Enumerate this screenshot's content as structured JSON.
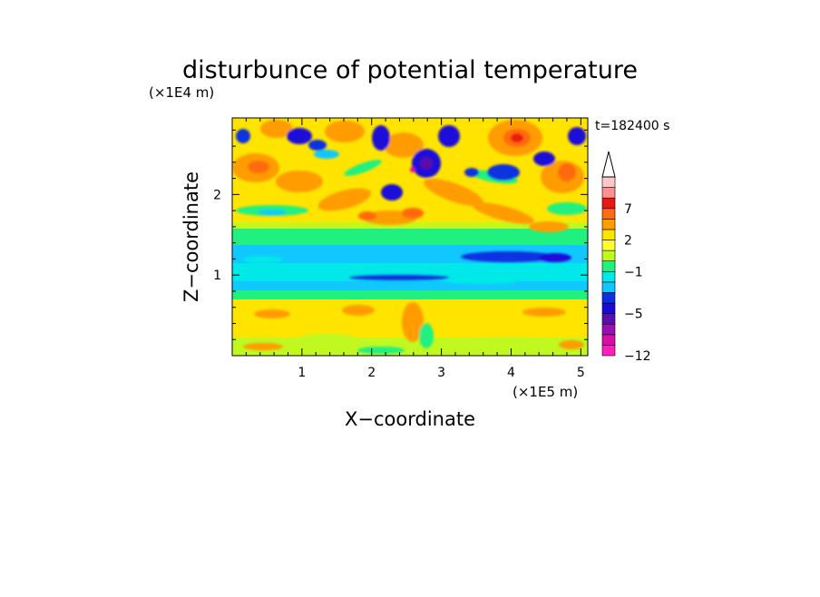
{
  "chart_data": {
    "type": "heatmap",
    "title": "disturbunce of potential temperature",
    "xlabel": "X−coordinate",
    "ylabel": "Z−coordinate",
    "x_unit": "(×1E5 m)",
    "y_unit": "(×1E4 m)",
    "time_label": "t=182400 s",
    "xlim": [
      0,
      5.1
    ],
    "ylim": [
      0,
      2.95
    ],
    "x_ticks": [
      1,
      2,
      3,
      4,
      5
    ],
    "y_ticks": [
      1,
      2
    ],
    "x_tick_labels": [
      "1",
      "2",
      "3",
      "4",
      "5"
    ],
    "y_tick_labels": [
      "1",
      "2"
    ],
    "grid": false,
    "colorbar": {
      "levels": [
        -12,
        -10,
        -8,
        -6,
        -5,
        -4,
        -3,
        -2,
        -1,
        0,
        1,
        2,
        3,
        5,
        7,
        9,
        11
      ],
      "labeled_levels": [
        "7",
        "2",
        "−1",
        "−5",
        "−12"
      ],
      "labeled_values": [
        7,
        2,
        -1,
        -5,
        -12
      ],
      "colors": [
        "#ff1fbf",
        "#d60fa8",
        "#9a0fb4",
        "#5a10a8",
        "#1a0ad8",
        "#1030e0",
        "#10c8ff",
        "#00e8e8",
        "#20f080",
        "#c0f820",
        "#ffff30",
        "#ffe400",
        "#ff9c00",
        "#ff6a10",
        "#e81a10",
        "#ff9090",
        "#ffc8c8"
      ],
      "extend": "max"
    }
  }
}
